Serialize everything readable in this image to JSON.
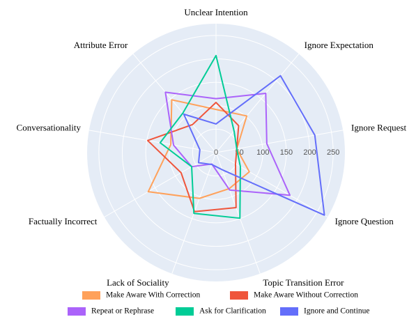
{
  "chart_data": {
    "type": "radar",
    "categories": [
      "Unclear Intention",
      "Ignore Expectation",
      "Ignore Request",
      "Ignore Question",
      "Topic Transition Error",
      "Lack of Sociality",
      "Factually Incorrect",
      "Conversationality",
      "Attribute Error"
    ],
    "series": [
      {
        "name": "Make Aware With Correction",
        "color": "#FFA15A",
        "values": [
          92,
          102,
          45,
          82,
          82,
          104,
          167,
          98,
          147
        ]
      },
      {
        "name": "Make Aware Without Correction",
        "color": "#EF553B",
        "values": [
          107,
          75,
          45,
          48,
          125,
          134,
          86,
          148,
          78
        ]
      },
      {
        "name": "Repeat or Rephrase",
        "color": "#AB63FA",
        "values": [
          115,
          165,
          110,
          182,
          85,
          26,
          60,
          92,
          168
        ]
      },
      {
        "name": "Ask for Clarification",
        "color": "#00CC96",
        "values": [
          207,
          60,
          45,
          60,
          149,
          138,
          60,
          121,
          110
        ]
      },
      {
        "name": "Ignore and Continue",
        "color": "#636EFA",
        "values": [
          61,
          214,
          214,
          267,
          39,
          27,
          43,
          35,
          107
        ]
      }
    ],
    "rlim": [
      0,
      275
    ],
    "rticks": [
      0,
      50,
      100,
      150,
      200,
      250
    ],
    "grid": true
  }
}
